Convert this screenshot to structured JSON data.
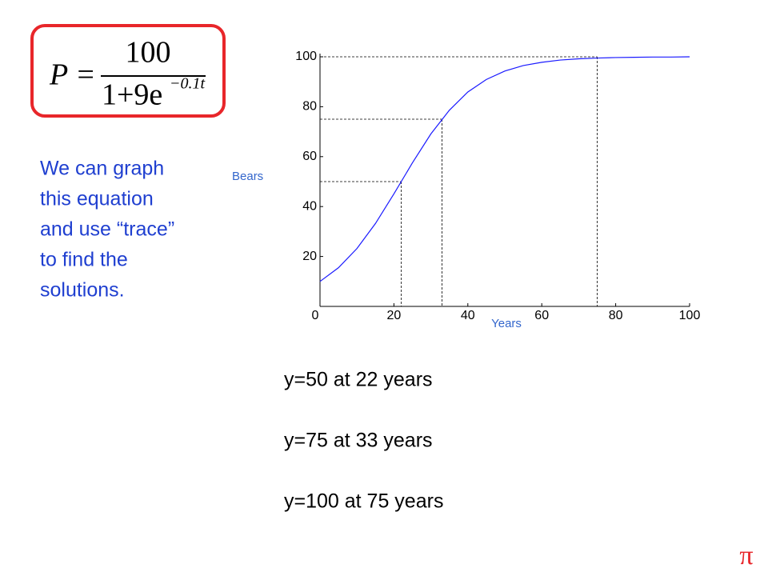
{
  "formula": {
    "lhs": "P =",
    "numerator": "100",
    "denominator": "1+9e",
    "exponent": "−0.1t"
  },
  "description": [
    "We can graph",
    "this equation",
    "and use “trace”",
    "to find the",
    "solutions."
  ],
  "results": [
    "y=50 at 22 years",
    "y=75 at 33 years",
    "y=100 at 75 years"
  ],
  "corner_symbol": "π",
  "chart_data": {
    "type": "line",
    "x_label": "Years",
    "y_label": "Bears",
    "x": [
      0,
      5,
      10,
      15,
      20,
      25,
      30,
      35,
      40,
      45,
      50,
      55,
      60,
      65,
      70,
      75,
      80,
      85,
      90,
      95,
      100
    ],
    "series": [
      {
        "color": "#1a1aff",
        "values": [
          10,
          15.5,
          23.2,
          33.2,
          45.1,
          57.5,
          69.1,
          78.6,
          85.9,
          90.9,
          94.3,
          96.5,
          97.8,
          98.7,
          99.2,
          99.5,
          99.7,
          99.8,
          99.9,
          99.9,
          100
        ]
      }
    ],
    "trace_points": {
      "x": [
        22,
        33,
        75
      ],
      "y": [
        50,
        75,
        100
      ]
    },
    "xlim": [
      0,
      100
    ],
    "ylim": [
      0,
      100
    ],
    "xticks": [
      0,
      20,
      40,
      60,
      80,
      100
    ],
    "yticks": [
      20,
      40,
      60,
      80,
      100
    ]
  }
}
